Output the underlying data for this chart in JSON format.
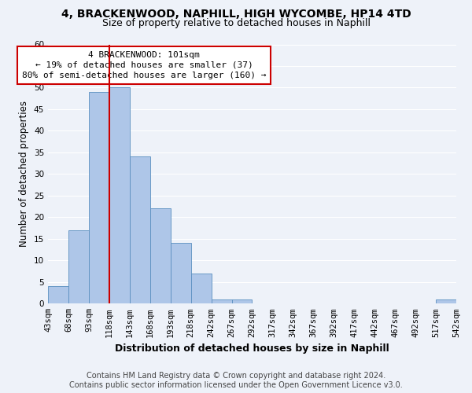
{
  "title1": "4, BRACKENWOOD, NAPHILL, HIGH WYCOMBE, HP14 4TD",
  "title2": "Size of property relative to detached houses in Naphill",
  "xlabel": "Distribution of detached houses by size in Naphill",
  "ylabel": "Number of detached properties",
  "bin_labels": [
    "43sqm",
    "68sqm",
    "93sqm",
    "118sqm",
    "143sqm",
    "168sqm",
    "193sqm",
    "218sqm",
    "242sqm",
    "267sqm",
    "292sqm",
    "317sqm",
    "342sqm",
    "367sqm",
    "392sqm",
    "417sqm",
    "442sqm",
    "467sqm",
    "492sqm",
    "517sqm",
    "542sqm"
  ],
  "bar_values": [
    4,
    17,
    49,
    50,
    34,
    22,
    14,
    7,
    1,
    1,
    0,
    0,
    0,
    0,
    0,
    0,
    0,
    0,
    0,
    1
  ],
  "bar_color": "#aec6e8",
  "bar_edge_color": "#5a8fc0",
  "red_line_x": 3.0,
  "red_line_color": "#cc0000",
  "annotation_text": "4 BRACKENWOOD: 101sqm\n← 19% of detached houses are smaller (37)\n80% of semi-detached houses are larger (160) →",
  "annotation_box_color": "#ffffff",
  "annotation_box_edge": "#cc0000",
  "ylim": [
    0,
    60
  ],
  "yticks": [
    0,
    5,
    10,
    15,
    20,
    25,
    30,
    35,
    40,
    45,
    50,
    55,
    60
  ],
  "footer1": "Contains HM Land Registry data © Crown copyright and database right 2024.",
  "footer2": "Contains public sector information licensed under the Open Government Licence v3.0.",
  "bg_color": "#eef2f9",
  "grid_color": "#ffffff",
  "title1_fontsize": 10,
  "title2_fontsize": 9,
  "axis_label_fontsize": 8.5,
  "tick_fontsize": 7.5,
  "annotation_fontsize": 8,
  "footer_fontsize": 7
}
